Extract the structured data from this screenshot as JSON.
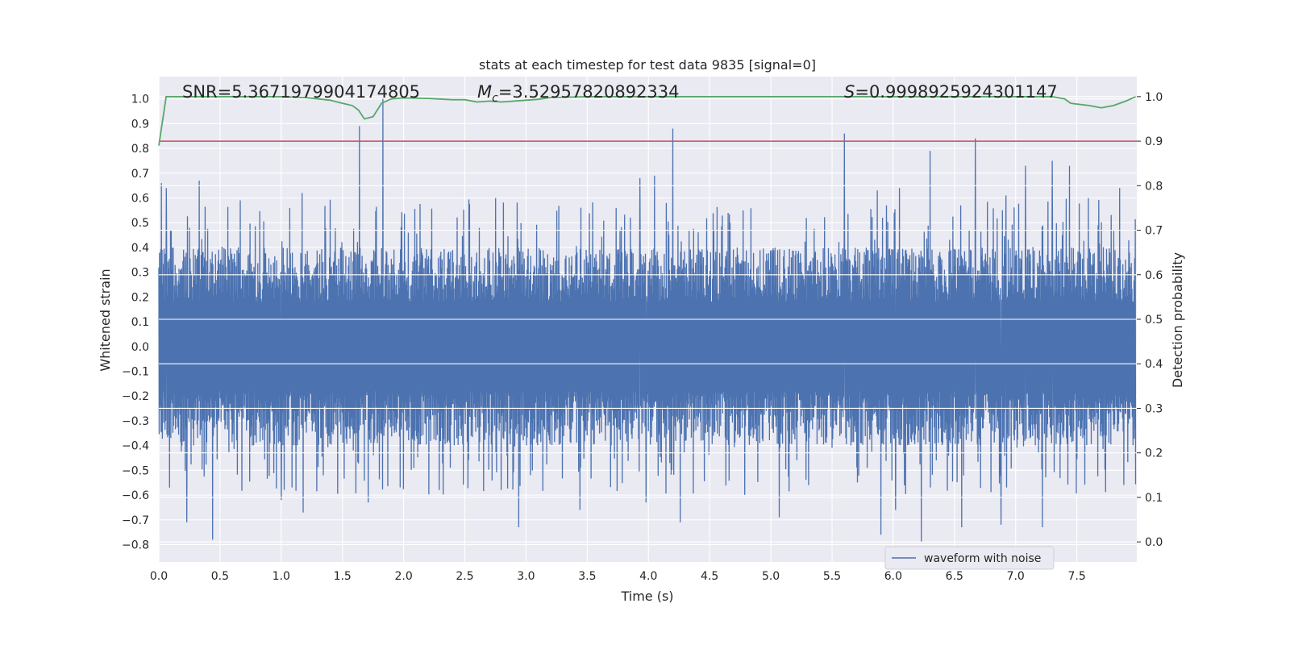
{
  "chart_data": {
    "type": "line",
    "title": "stats at each timestep for test data 9835 [signal=0]",
    "xlabel": "Time (s)",
    "ylabel_left": "Whitened strain",
    "ylabel_right": "Detection probability",
    "xlim": [
      0.0,
      7.99
    ],
    "ylim_left": [
      -0.87,
      1.09
    ],
    "ylim_right": [
      -0.045,
      1.045
    ],
    "x_ticks": [
      "0.0",
      "0.5",
      "1.0",
      "1.5",
      "2.0",
      "2.5",
      "3.0",
      "3.5",
      "4.0",
      "4.5",
      "5.0",
      "5.5",
      "6.0",
      "6.5",
      "7.0",
      "7.5"
    ],
    "y_ticks_left": [
      "−0.8",
      "−0.7",
      "−0.6",
      "−0.5",
      "−0.4",
      "−0.3",
      "−0.2",
      "−0.1",
      "0.0",
      "0.1",
      "0.2",
      "0.3",
      "0.4",
      "0.5",
      "0.6",
      "0.7",
      "0.8",
      "0.9",
      "1.0"
    ],
    "y_ticks_right": [
      "0.0",
      "0.1",
      "0.2",
      "0.3",
      "0.4",
      "0.5",
      "0.6",
      "0.7",
      "0.8",
      "0.9",
      "1.0"
    ],
    "grid": true,
    "legend_position": "bottom-right",
    "annotations": {
      "snr": "SNR=5.3671979904174805",
      "mc_symbol": "M",
      "mc_sub": "c",
      "mc_value": "=3.52957820892334",
      "s_symbol": "S",
      "s_value": "=0.9998925924301147"
    },
    "series": [
      {
        "name": "waveform with noise",
        "axis": "left",
        "color": "#4c72b0",
        "style": "dense noise, envelope approx ±0.45",
        "positive_peaks": [
          [
            0.02,
            0.66
          ],
          [
            0.06,
            0.64
          ],
          [
            0.33,
            0.67
          ],
          [
            1.64,
            0.89
          ],
          [
            1.83,
            1.0
          ],
          [
            4.2,
            0.88
          ],
          [
            5.6,
            0.86
          ],
          [
            6.3,
            0.79
          ],
          [
            6.67,
            0.84
          ],
          [
            3.93,
            0.68
          ],
          [
            4.05,
            0.69
          ],
          [
            7.08,
            0.73
          ],
          [
            7.3,
            0.75
          ],
          [
            7.44,
            0.73
          ],
          [
            6.05,
            0.64
          ],
          [
            5.87,
            0.63
          ],
          [
            6.92,
            0.61
          ],
          [
            1.17,
            0.62
          ],
          [
            7.85,
            0.64
          ]
        ],
        "negative_peaks": [
          [
            0.44,
            -0.78
          ],
          [
            0.23,
            -0.71
          ],
          [
            1.18,
            -0.67
          ],
          [
            1.71,
            -0.63
          ],
          [
            2.94,
            -0.73
          ],
          [
            4.26,
            -0.71
          ],
          [
            5.9,
            -0.76
          ],
          [
            6.23,
            -0.79
          ],
          [
            6.56,
            -0.73
          ],
          [
            6.88,
            -0.72
          ],
          [
            7.22,
            -0.73
          ],
          [
            3.44,
            -0.66
          ],
          [
            3.98,
            -0.63
          ],
          [
            5.07,
            -0.69
          ],
          [
            6.02,
            -0.66
          ],
          [
            1.0,
            -0.62
          ]
        ]
      },
      {
        "name": "",
        "axis": "right",
        "color": "#55a868",
        "x": [
          0.0,
          0.06,
          0.2,
          0.5,
          1.0,
          1.2,
          1.4,
          1.5,
          1.58,
          1.63,
          1.68,
          1.75,
          1.82,
          1.9,
          2.0,
          2.2,
          2.4,
          2.5,
          2.6,
          2.7,
          2.8,
          2.9,
          3.0,
          3.1,
          3.2,
          3.5,
          4.0,
          4.5,
          5.0,
          5.5,
          6.0,
          6.5,
          6.7,
          7.0,
          7.3,
          7.4,
          7.45,
          7.6,
          7.7,
          7.8,
          7.9,
          7.98
        ],
        "values": [
          0.89,
          1.0,
          1.0,
          1.0,
          1.0,
          0.998,
          0.992,
          0.985,
          0.98,
          0.97,
          0.95,
          0.955,
          0.985,
          0.995,
          0.997,
          0.996,
          0.993,
          0.993,
          0.988,
          0.99,
          0.988,
          0.99,
          0.992,
          0.994,
          0.998,
          1.0,
          1.0,
          1.0,
          1.0,
          1.0,
          1.0,
          1.0,
          1.0,
          1.0,
          1.0,
          0.995,
          0.985,
          0.98,
          0.975,
          0.98,
          0.99,
          1.0
        ]
      },
      {
        "name": "",
        "axis": "right",
        "color": "#c44e52",
        "style": "threshold",
        "values": [
          0.9
        ]
      }
    ]
  }
}
